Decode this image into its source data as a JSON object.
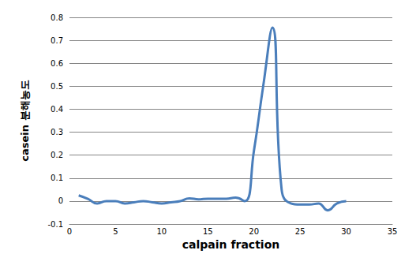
{
  "chart_data": {
    "type": "line",
    "x_label": "calpain fraction",
    "y_label": "casein 분해농도",
    "x": [
      1,
      2,
      3,
      4,
      5,
      6,
      7,
      8,
      9,
      10,
      11,
      12,
      13,
      14,
      15,
      16,
      17,
      18,
      19,
      20,
      21,
      22,
      23,
      24,
      25,
      26,
      27,
      28,
      29,
      30
    ],
    "values": [
      0.025,
      0.01,
      -0.01,
      0,
      0,
      -0.01,
      -0.005,
      0,
      -0.005,
      -0.01,
      -0.005,
      0,
      0.012,
      0.008,
      0.01,
      0.01,
      0.01,
      0.015,
      0,
      0.22,
      0.5,
      0.755,
      0.05,
      -0.01,
      -0.015,
      -0.015,
      -0.01,
      -0.04,
      -0.01,
      0
    ],
    "color": "#4a7ebb",
    "marker": "none",
    "line_style": "solid",
    "xlim": [
      0,
      35
    ],
    "xticks": [
      0,
      5,
      10,
      15,
      20,
      25,
      30,
      35
    ],
    "ylim": [
      -0.1,
      0.8
    ],
    "yticks": [
      -0.1,
      0,
      0.1,
      0.2,
      0.3,
      0.4,
      0.5,
      0.6,
      0.7,
      0.8
    ],
    "grid": true
  }
}
